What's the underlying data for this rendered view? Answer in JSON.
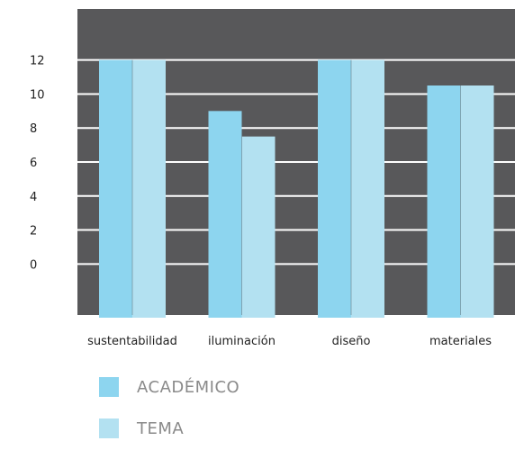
{
  "chart_data": {
    "type": "bar",
    "categories": [
      "sustentabilidad",
      "iluminación",
      "diseño",
      "materiales"
    ],
    "series": [
      {
        "name": "ACADÉMICO",
        "values": [
          12,
          9,
          12,
          10.5
        ],
        "color": "#8dd5ef"
      },
      {
        "name": "TEMA",
        "values": [
          12,
          7.5,
          12,
          10.5
        ],
        "color": "#b3e1f1"
      }
    ],
    "yticks": [
      0,
      2,
      4,
      6,
      8,
      10,
      12
    ],
    "ylim": [
      -3,
      15
    ],
    "grid": true,
    "plot_background": "#58585a",
    "gridline_color": "#ffffff",
    "legend_placement": "bottom-left"
  }
}
